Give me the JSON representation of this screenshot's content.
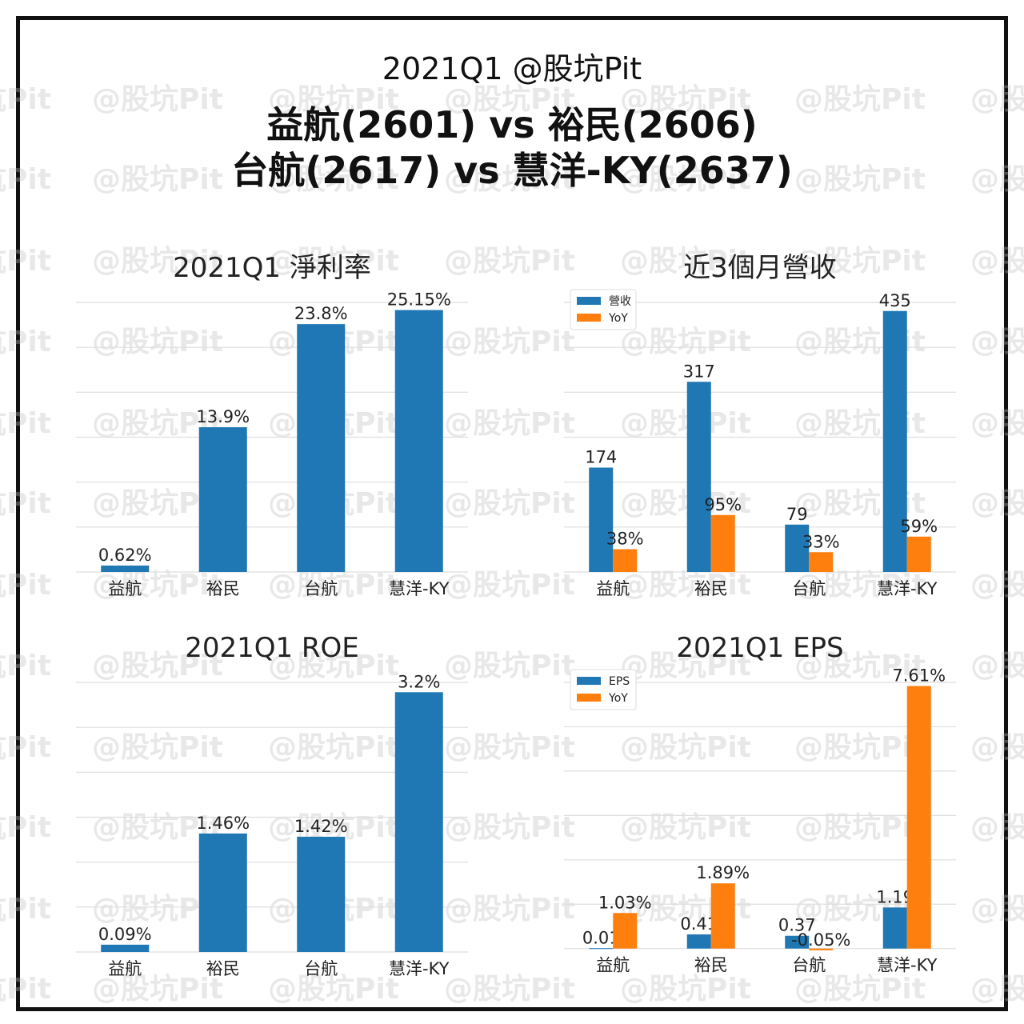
{
  "header": {
    "line1": "2021Q1  @股坑Pit",
    "line2": "益航(2601) vs 裕民(2606)",
    "line3": "台航(2617) vs 慧洋-KY(2637)"
  },
  "watermark": "@股坑Pit",
  "colors": {
    "blue": "#1f77b4",
    "orange": "#ff7f0e"
  },
  "chart_data": [
    {
      "type": "bar",
      "title": "2021Q1 淨利率",
      "categories": [
        "益航",
        "裕民",
        "台航",
        "慧洋-KY"
      ],
      "series": [
        {
          "values": [
            0.62,
            13.9,
            23.8,
            25.15
          ],
          "labels": [
            "0.62%",
            "13.9%",
            "23.8%",
            "25.15%"
          ]
        }
      ],
      "ylim": [
        0,
        26.5
      ],
      "grid": true
    },
    {
      "type": "bar",
      "title": "近3個月營收",
      "categories": [
        "益航",
        "裕民",
        "台航",
        "慧洋-KY"
      ],
      "series": [
        {
          "name": "營收",
          "values": [
            174,
            317,
            79,
            435
          ],
          "labels": [
            "174",
            "317",
            "79",
            "435"
          ]
        },
        {
          "name": "YoY",
          "values": [
            38,
            95,
            33,
            59
          ],
          "labels": [
            "38%",
            "95%",
            "33%",
            "59%"
          ]
        }
      ],
      "ylim": [
        0,
        460
      ],
      "grid": true,
      "legend": "top-left"
    },
    {
      "type": "bar",
      "title": "2021Q1 ROE",
      "categories": [
        "益航",
        "裕民",
        "台航",
        "慧洋-KY"
      ],
      "series": [
        {
          "values": [
            0.09,
            1.46,
            1.42,
            3.2
          ],
          "labels": [
            "0.09%",
            "1.46%",
            "1.42%",
            "3.2%"
          ]
        }
      ],
      "ylim": [
        0,
        3.4
      ],
      "grid": true
    },
    {
      "type": "bar",
      "title": "2021Q1 EPS",
      "categories": [
        "益航",
        "裕民",
        "台航",
        "慧洋-KY"
      ],
      "series": [
        {
          "name": "EPS",
          "values": [
            0.01,
            0.41,
            0.37,
            1.19
          ],
          "labels": [
            "0.01",
            "0.41",
            "0.37",
            "1.19"
          ]
        },
        {
          "name": "YoY",
          "values": [
            1.03,
            1.89,
            -0.05,
            7.61
          ],
          "labels": [
            "1.03%",
            "1.89%",
            "-0.05%",
            "7.61%"
          ]
        }
      ],
      "ylim": [
        -0.1,
        7.9
      ],
      "grid": true,
      "legend": "top-left"
    }
  ]
}
